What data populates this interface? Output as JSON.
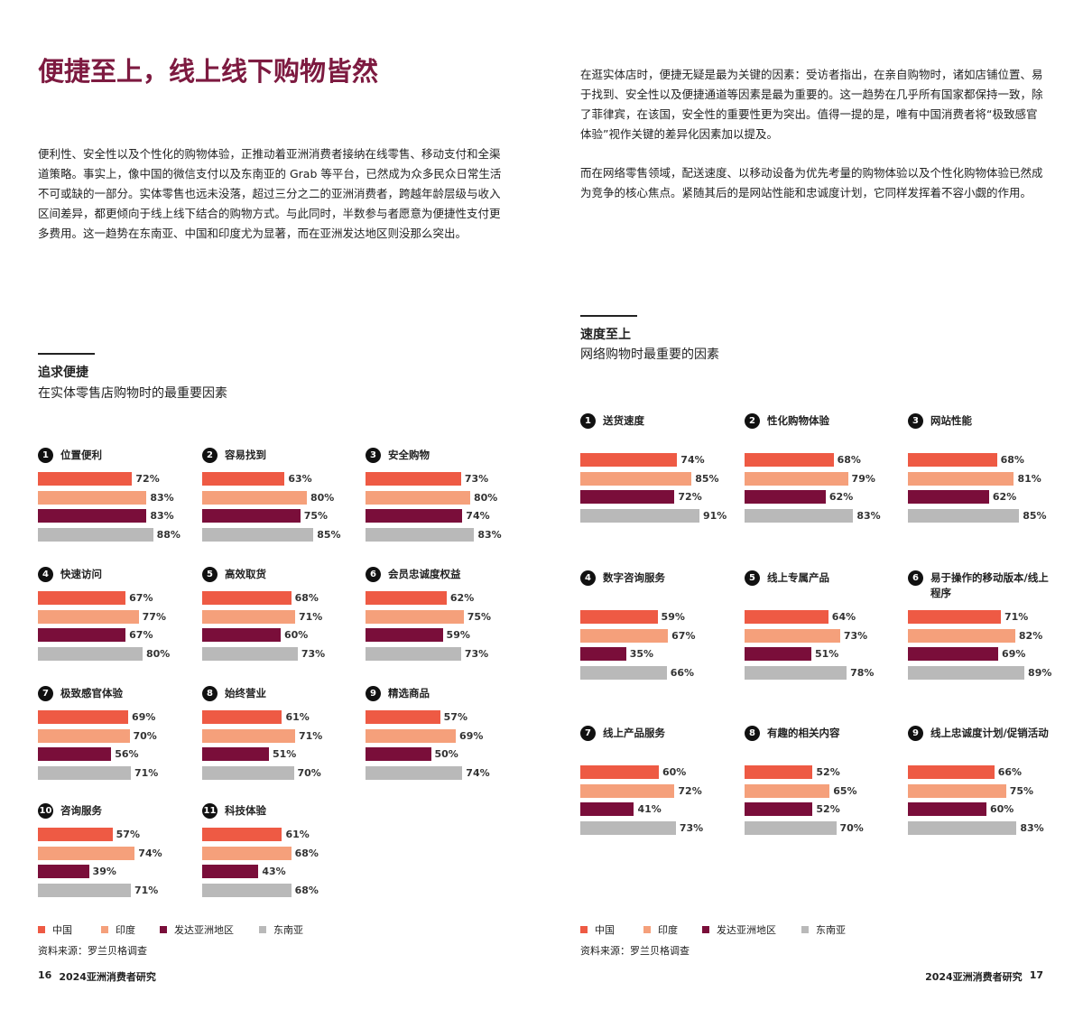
{
  "page_left": {
    "title": "便捷至上，线上线下购物皆然",
    "paragraph": "便利性、安全性以及个性化的购物体验，正推动着亚洲消费者接纳在线零售、移动支付和全渠道策略。事实上，像中国的微信支付以及东南亚的 Grab 等平台，已然成为众多民众日常生活不可或缺的一部分。实体零售也远未没落，超过三分之二的亚洲消费者，跨越年龄层级与收入区间差异，都更倾向于线上线下结合的购物方式。与此同时，半数参与者愿意为便捷性支付更多费用。这一趋势在东南亚、中国和印度尤为显著，而在亚洲发达地区则没那么突出。",
    "page_number": "16",
    "footer": "2024亚洲消费者研究"
  },
  "page_right": {
    "paragraphs": [
      "在逛实体店时，便捷无疑是最为关键的因素：受访者指出，在亲自购物时，诸如店铺位置、易于找到、安全性以及便捷通道等因素是最为重要的。这一趋势在几乎所有国家都保持一致，除了菲律宾，在该国，安全性的重要性更为突出。值得一提的是，唯有中国消费者将“极致感官体验”视作关键的差异化因素加以提及。",
      "而在网络零售领域，配送速度、以移动设备为优先考量的购物体验以及个性化购物体验已然成为竞争的核心焦点。紧随其后的是网站性能和忠诚度计划，它同样发挥着不容小觑的作用。"
    ],
    "page_number": "17",
    "footer": "2024亚洲消费者研究"
  },
  "source": "资料来源：罗兰贝格调查",
  "chart_data": [
    {
      "type": "bar",
      "title": "追求便捷",
      "subtitle": "在实体零售店购物时的最重要因素",
      "series": [
        {
          "name": "中国",
          "color": "#ee5a44"
        },
        {
          "name": "印度",
          "color": "#f5a07b"
        },
        {
          "name": "发达亚洲地区",
          "color": "#7a0e3a"
        },
        {
          "name": "东南亚",
          "color": "#b9b9b9"
        }
      ],
      "panels": [
        {
          "number": 1,
          "label": "位置便利",
          "values": [
            72,
            83,
            83,
            88
          ],
          "value_labels": [
            "72%",
            "83%",
            "83%",
            "88%"
          ]
        },
        {
          "number": 2,
          "label": "容易找到",
          "values": [
            63,
            80,
            75,
            85
          ],
          "value_labels": [
            "63%",
            "80%",
            "75%",
            "85%"
          ]
        },
        {
          "number": 3,
          "label": "安全购物",
          "values": [
            73,
            80,
            74,
            83
          ],
          "value_labels": [
            "73%",
            "80%",
            "74%",
            "83%"
          ]
        },
        {
          "number": 4,
          "label": "快速访问",
          "values": [
            67,
            77,
            67,
            80
          ],
          "value_labels": [
            "67%",
            "77%",
            "67%",
            "80%"
          ]
        },
        {
          "number": 5,
          "label": "高效取货",
          "values": [
            68,
            71,
            60,
            73
          ],
          "value_labels": [
            "68%",
            "71%",
            "60%",
            "73%"
          ]
        },
        {
          "number": 6,
          "label": "会员忠诚度权益",
          "values": [
            62,
            75,
            59,
            73
          ],
          "value_labels": [
            "62%",
            "75%",
            "59%",
            "73%"
          ]
        },
        {
          "number": 7,
          "label": "极致感官体验",
          "values": [
            69,
            70,
            56,
            71
          ],
          "value_labels": [
            "69%",
            "70%",
            "56%",
            "71%"
          ]
        },
        {
          "number": 8,
          "label": "始终营业",
          "values": [
            61,
            71,
            51,
            70
          ],
          "value_labels": [
            "61%",
            "71%",
            "51%",
            "70%"
          ]
        },
        {
          "number": 9,
          "label": "精选商品",
          "values": [
            57,
            69,
            50,
            74
          ],
          "value_labels": [
            "57%",
            "69%",
            "50%",
            "74%"
          ]
        },
        {
          "number": 10,
          "label": "咨询服务",
          "values": [
            57,
            74,
            39,
            71
          ],
          "value_labels": [
            "57%",
            "74%",
            "39%",
            "71%"
          ]
        },
        {
          "number": 11,
          "label": "科技体验",
          "values": [
            61,
            68,
            43,
            68
          ],
          "value_labels": [
            "61%",
            "68%",
            "43%",
            "68%"
          ]
        }
      ]
    },
    {
      "type": "bar",
      "title": "速度至上",
      "subtitle": "网络购物时最重要的因素",
      "series": [
        {
          "name": "中国",
          "color": "#ee5a44"
        },
        {
          "name": "印度",
          "color": "#f5a07b"
        },
        {
          "name": "发达亚洲地区",
          "color": "#7a0e3a"
        },
        {
          "name": "东南亚",
          "color": "#b9b9b9"
        }
      ],
      "panels": [
        {
          "number": 1,
          "label": "送货速度",
          "values": [
            74,
            85,
            72,
            91
          ],
          "value_labels": [
            "74%",
            "85%",
            "72%",
            "91%"
          ]
        },
        {
          "number": 2,
          "label": "性化购物体验",
          "values": [
            68,
            79,
            62,
            83
          ],
          "value_labels": [
            "68%",
            "79%",
            "62%",
            "83%"
          ]
        },
        {
          "number": 3,
          "label": "网站性能",
          "values": [
            68,
            81,
            62,
            85
          ],
          "value_labels": [
            "68%",
            "81%",
            "62%",
            "85%"
          ]
        },
        {
          "number": 4,
          "label": "数字咨询服务",
          "values": [
            59,
            67,
            35,
            66
          ],
          "value_labels": [
            "59%",
            "67%",
            "35%",
            "66%"
          ]
        },
        {
          "number": 5,
          "label": "线上专属产品",
          "values": [
            64,
            73,
            51,
            78
          ],
          "value_labels": [
            "64%",
            "73%",
            "51%",
            "78%"
          ]
        },
        {
          "number": 6,
          "label": "易于操作的移动版本/线上程序",
          "values": [
            71,
            82,
            69,
            89
          ],
          "value_labels": [
            "71%",
            "82%",
            "69%",
            "89%"
          ]
        },
        {
          "number": 7,
          "label": "线上产品服务",
          "values": [
            60,
            72,
            41,
            73
          ],
          "value_labels": [
            "60%",
            "72%",
            "41%",
            "73%"
          ]
        },
        {
          "number": 8,
          "label": "有趣的相关内容",
          "values": [
            52,
            65,
            52,
            70
          ],
          "value_labels": [
            "52%",
            "65%",
            "52%",
            "70%"
          ]
        },
        {
          "number": 9,
          "label": "线上忠诚度计划/促销活动",
          "values": [
            66,
            75,
            60,
            83
          ],
          "value_labels": [
            "66%",
            "75%",
            "60%",
            "83%"
          ]
        }
      ]
    }
  ]
}
